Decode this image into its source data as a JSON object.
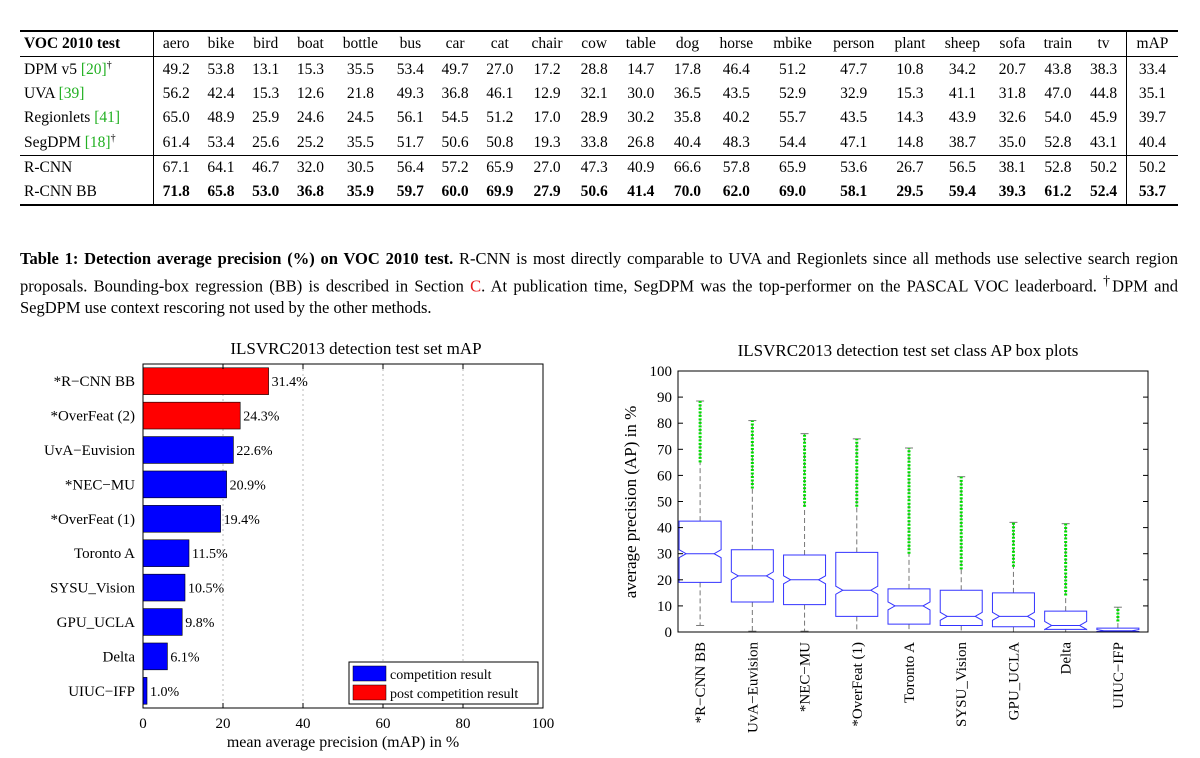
{
  "table": {
    "corner": "VOC 2010 test",
    "columns": [
      "aero",
      "bike",
      "bird",
      "boat",
      "bottle",
      "bus",
      "car",
      "cat",
      "chair",
      "cow",
      "table",
      "dog",
      "horse",
      "mbike",
      "person",
      "plant",
      "sheep",
      "sofa",
      "train",
      "tv"
    ],
    "map_label": "mAP",
    "rows": [
      {
        "name": "DPM v5 ",
        "cite": "[20]",
        "dagger": "†",
        "values": [
          "49.2",
          "53.8",
          "13.1",
          "15.3",
          "35.5",
          "53.4",
          "49.7",
          "27.0",
          "17.2",
          "28.8",
          "14.7",
          "17.8",
          "46.4",
          "51.2",
          "47.7",
          "10.8",
          "34.2",
          "20.7",
          "43.8",
          "38.3"
        ],
        "map": "33.4"
      },
      {
        "name": "UVA ",
        "cite": "[39]",
        "dagger": "",
        "values": [
          "56.2",
          "42.4",
          "15.3",
          "12.6",
          "21.8",
          "49.3",
          "36.8",
          "46.1",
          "12.9",
          "32.1",
          "30.0",
          "36.5",
          "43.5",
          "52.9",
          "32.9",
          "15.3",
          "41.1",
          "31.8",
          "47.0",
          "44.8"
        ],
        "map": "35.1"
      },
      {
        "name": "Regionlets ",
        "cite": "[41]",
        "dagger": "",
        "values": [
          "65.0",
          "48.9",
          "25.9",
          "24.6",
          "24.5",
          "56.1",
          "54.5",
          "51.2",
          "17.0",
          "28.9",
          "30.2",
          "35.8",
          "40.2",
          "55.7",
          "43.5",
          "14.3",
          "43.9",
          "32.6",
          "54.0",
          "45.9"
        ],
        "map": "39.7"
      },
      {
        "name": "SegDPM ",
        "cite": "[18]",
        "dagger": "†",
        "values": [
          "61.4",
          "53.4",
          "25.6",
          "25.2",
          "35.5",
          "51.7",
          "50.6",
          "50.8",
          "19.3",
          "33.8",
          "26.8",
          "40.4",
          "48.3",
          "54.4",
          "47.1",
          "14.8",
          "38.7",
          "35.0",
          "52.8",
          "43.1"
        ],
        "map": "40.4"
      },
      {
        "name": "R-CNN",
        "cite": "",
        "dagger": "",
        "values": [
          "67.1",
          "64.1",
          "46.7",
          "32.0",
          "30.5",
          "56.4",
          "57.2",
          "65.9",
          "27.0",
          "47.3",
          "40.9",
          "66.6",
          "57.8",
          "65.9",
          "53.6",
          "26.7",
          "56.5",
          "38.1",
          "52.8",
          "50.2"
        ],
        "map": "50.2"
      },
      {
        "name": "R-CNN BB",
        "cite": "",
        "dagger": "",
        "values": [
          "71.8",
          "65.8",
          "53.0",
          "36.8",
          "35.9",
          "59.7",
          "60.0",
          "69.9",
          "27.9",
          "50.6",
          "41.4",
          "70.0",
          "62.0",
          "69.0",
          "58.1",
          "29.5",
          "59.4",
          "39.3",
          "61.2",
          "52.4"
        ],
        "map": "53.7"
      }
    ]
  },
  "caption": {
    "title": "Table 1: Detection average precision (%) on VOC 2010 test.",
    "text1": " R-CNN is most directly comparable to UVA and Regionlets since all methods use selective search region proposals. Bounding-box regression (BB) is described in Section ",
    "section_ref": "C",
    "text2": ". At publication time, SegDPM was the top-performer on the PASCAL VOC leaderboard. ",
    "dagger": "†",
    "text3": "DPM and SegDPM use context rescoring not used by the other methods."
  },
  "charts": {
    "colors": {
      "competition": "#0000ff",
      "post": "#ff0000",
      "box": "#3333ff",
      "whisker": "#777777",
      "outlier": "#00dd00"
    },
    "chart_data": [
      {
        "type": "bar",
        "orientation": "horizontal",
        "title": "ILSVRC2013 detection test set mAP",
        "xlabel": "mean average precision (mAP) in %",
        "ylabel": "",
        "xlim": [
          0,
          100
        ],
        "xticks": [
          "0",
          "20",
          "40",
          "60",
          "80",
          "100"
        ],
        "categories": [
          "*R−CNN BB",
          "*OverFeat (2)",
          "UvA−Euvision",
          "*NEC−MU",
          "*OverFeat (1)",
          "Toronto A",
          "SYSU_Vision",
          "GPU_UCLA",
          "Delta",
          "UIUC−IFP"
        ],
        "values": [
          31.4,
          24.3,
          22.6,
          20.9,
          19.4,
          11.5,
          10.5,
          9.8,
          6.1,
          1.0
        ],
        "labels": [
          "31.4%",
          "24.3%",
          "22.6%",
          "20.9%",
          "19.4%",
          "11.5%",
          "10.5%",
          "9.8%",
          "6.1%",
          "1.0%"
        ],
        "groups": [
          "post",
          "post",
          "competition",
          "competition",
          "competition",
          "competition",
          "competition",
          "competition",
          "competition",
          "competition"
        ],
        "legend": [
          {
            "key": "competition",
            "label": "competition result"
          },
          {
            "key": "post",
            "label": "post competition result"
          }
        ],
        "legend_position": "bottom-right"
      },
      {
        "type": "box",
        "title": "ILSVRC2013 detection test set class AP box plots",
        "xlabel": "",
        "ylabel": "average precision (AP) in %",
        "ylim": [
          0,
          100
        ],
        "yticks": [
          "0",
          "10",
          "20",
          "30",
          "40",
          "50",
          "60",
          "70",
          "80",
          "90",
          "100"
        ],
        "categories": [
          "*R−CNN BB",
          "UvA−Euvision",
          "*NEC−MU",
          "*OverFeat (1)",
          "Toronto A",
          "SYSU_Vision",
          "GPU_UCLA",
          "Delta",
          "UIUC−IFP"
        ],
        "boxes": [
          {
            "whisker_low": 2.5,
            "q1": 19,
            "median": 30,
            "q3": 42.5,
            "whisker_high": 65,
            "max": 88.5
          },
          {
            "whisker_low": 0.3,
            "q1": 11.5,
            "median": 21.5,
            "q3": 31.5,
            "whisker_high": 55,
            "max": 81
          },
          {
            "whisker_low": 0.3,
            "q1": 10.5,
            "median": 20,
            "q3": 29.5,
            "whisker_high": 48,
            "max": 76
          },
          {
            "whisker_low": 0,
            "q1": 6,
            "median": 16,
            "q3": 30.5,
            "whisker_high": 48,
            "max": 74
          },
          {
            "whisker_low": 0,
            "q1": 3,
            "median": 10,
            "q3": 16.5,
            "whisker_high": 30,
            "max": 70.5
          },
          {
            "whisker_low": 0,
            "q1": 2.5,
            "median": 6,
            "q3": 16,
            "whisker_high": 24,
            "max": 59.5
          },
          {
            "whisker_low": 0,
            "q1": 2,
            "median": 6,
            "q3": 15,
            "whisker_high": 25,
            "max": 42
          },
          {
            "whisker_low": 0,
            "q1": 1,
            "median": 2.5,
            "q3": 8,
            "whisker_high": 14,
            "max": 41.5
          },
          {
            "whisker_low": 0,
            "q1": 0.2,
            "median": 0.5,
            "q3": 1.5,
            "whisker_high": 4,
            "max": 9.5
          }
        ]
      }
    ]
  }
}
